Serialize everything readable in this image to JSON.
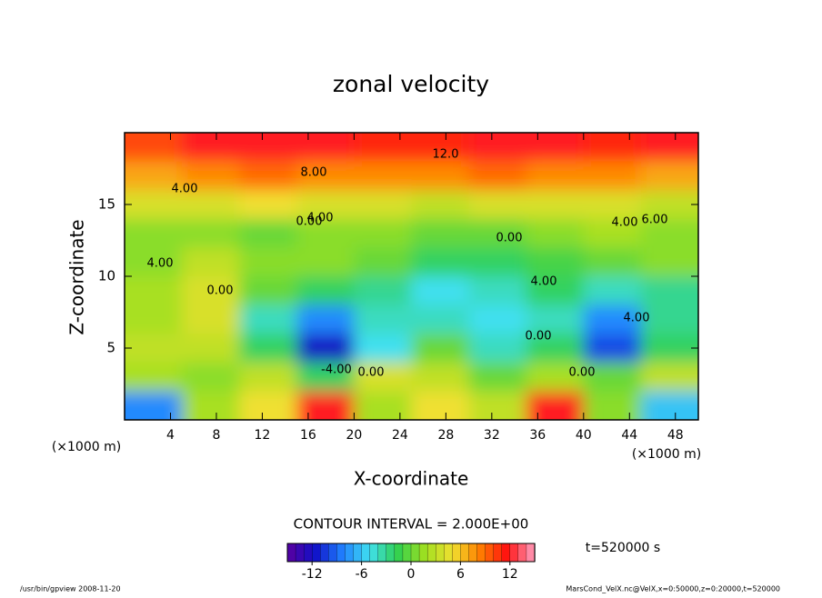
{
  "chart_data": {
    "type": "heatmap",
    "title": "zonal velocity",
    "x_label": "X-coordinate",
    "y_label": "Z-coordinate",
    "x_unit": "(×1000 m)",
    "contour_interval": "CONTOUR INTERVAL = 2.000E+00",
    "time_label": "t=520000 s",
    "footer_left": "/usr/bin/gpview  2008-11-20",
    "footer_right": "MarsCond_VelX.nc@VelX,x=0:50000,z=0:20000,t=520000",
    "xlim": [
      0,
      50
    ],
    "ylim": [
      0,
      20
    ],
    "xticks": [
      4,
      8,
      12,
      16,
      20,
      24,
      28,
      32,
      36,
      40,
      44,
      48
    ],
    "yticks": [
      5,
      10,
      15
    ],
    "x": [
      2.5,
      7.5,
      12.5,
      17.5,
      22.5,
      27.5,
      32.5,
      37.5,
      42.5,
      47.5
    ],
    "y": [
      19,
      17,
      15,
      13,
      11,
      9,
      7,
      5,
      3,
      1
    ],
    "z": [
      [
        10,
        12,
        12,
        12,
        11,
        11,
        12,
        12,
        11,
        12
      ],
      [
        7,
        8,
        9,
        8,
        8,
        8,
        9,
        8,
        8,
        7
      ],
      [
        4,
        4,
        5,
        4,
        4,
        3,
        4,
        4,
        4,
        3
      ],
      [
        1,
        1,
        0,
        1,
        1,
        0,
        0,
        1,
        2,
        1
      ],
      [
        1,
        3,
        1,
        1,
        0,
        -2,
        -2,
        -1,
        0,
        1
      ],
      [
        2,
        4,
        0,
        -2,
        -3,
        -5,
        -4,
        -2,
        -4,
        -3
      ],
      [
        2,
        4,
        -4,
        -8,
        -4,
        -4,
        -5,
        -4,
        -8,
        -3
      ],
      [
        3,
        3,
        -2,
        -12,
        -5,
        0,
        -4,
        -2,
        -10,
        -2
      ],
      [
        2,
        1,
        3,
        -2,
        4,
        3,
        0,
        2,
        0,
        3
      ],
      [
        -8,
        2,
        5,
        12,
        2,
        5,
        3,
        12,
        1,
        -6
      ]
    ],
    "clim": [
      -15,
      15
    ],
    "cticks": [
      -12,
      -6,
      0,
      6,
      12
    ],
    "colormap": [
      "#5a00a0",
      "#1010c8",
      "#2080ff",
      "#40e0f0",
      "#30d050",
      "#a0e020",
      "#f0e030",
      "#ff8000",
      "#ff1010",
      "#ffa0c0"
    ],
    "contour_labels": [
      "12.0",
      "8.00",
      "4.00",
      "0.00",
      "4.00",
      "0.00",
      "4.00",
      "6.00",
      "4.00",
      "0.00",
      "4.00",
      "0.00",
      "-4.00",
      "0.00",
      "4.00",
      "0.00"
    ]
  }
}
